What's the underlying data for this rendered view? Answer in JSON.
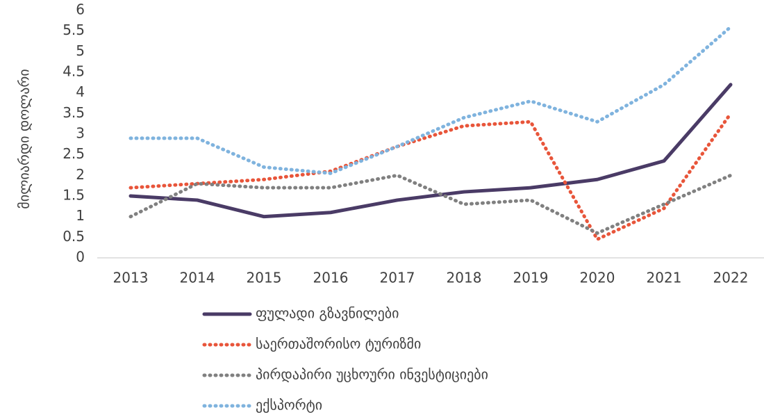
{
  "chart_data": {
    "type": "line",
    "y_label": "მილიარდი დოლარი",
    "categories": [
      "2013",
      "2014",
      "2015",
      "2016",
      "2017",
      "2018",
      "2019",
      "2020",
      "2021",
      "2022"
    ],
    "series": [
      {
        "name": "ფულადი გზავნილები",
        "color": "#4a3b66",
        "style": "solid",
        "values": [
          1.5,
          1.4,
          1.0,
          1.1,
          1.4,
          1.6,
          1.7,
          1.9,
          2.35,
          4.2
        ]
      },
      {
        "name": "საერთაშორისო ტურიზმი",
        "color": "#e8553a",
        "style": "dotted",
        "values": [
          1.7,
          1.8,
          1.9,
          2.1,
          2.7,
          3.2,
          3.3,
          0.45,
          1.2,
          3.5
        ]
      },
      {
        "name": "პირდაპირი უცხოური ინვესტიციები",
        "color": "#808080",
        "style": "dotted",
        "values": [
          1.0,
          1.8,
          1.7,
          1.7,
          2.0,
          1.3,
          1.4,
          0.6,
          1.3,
          2.0
        ]
      },
      {
        "name": "ექსპორტი",
        "color": "#7fb3de",
        "style": "dotted",
        "values": [
          2.9,
          2.9,
          2.2,
          2.05,
          2.7,
          3.4,
          3.8,
          3.3,
          4.2,
          5.6
        ]
      }
    ],
    "ylim": [
      0,
      6
    ],
    "yticks": [
      0,
      0.5,
      1,
      1.5,
      2,
      2.5,
      3,
      3.5,
      4,
      4.5,
      5,
      5.5,
      6
    ],
    "grid": false,
    "legend": "bottom"
  }
}
